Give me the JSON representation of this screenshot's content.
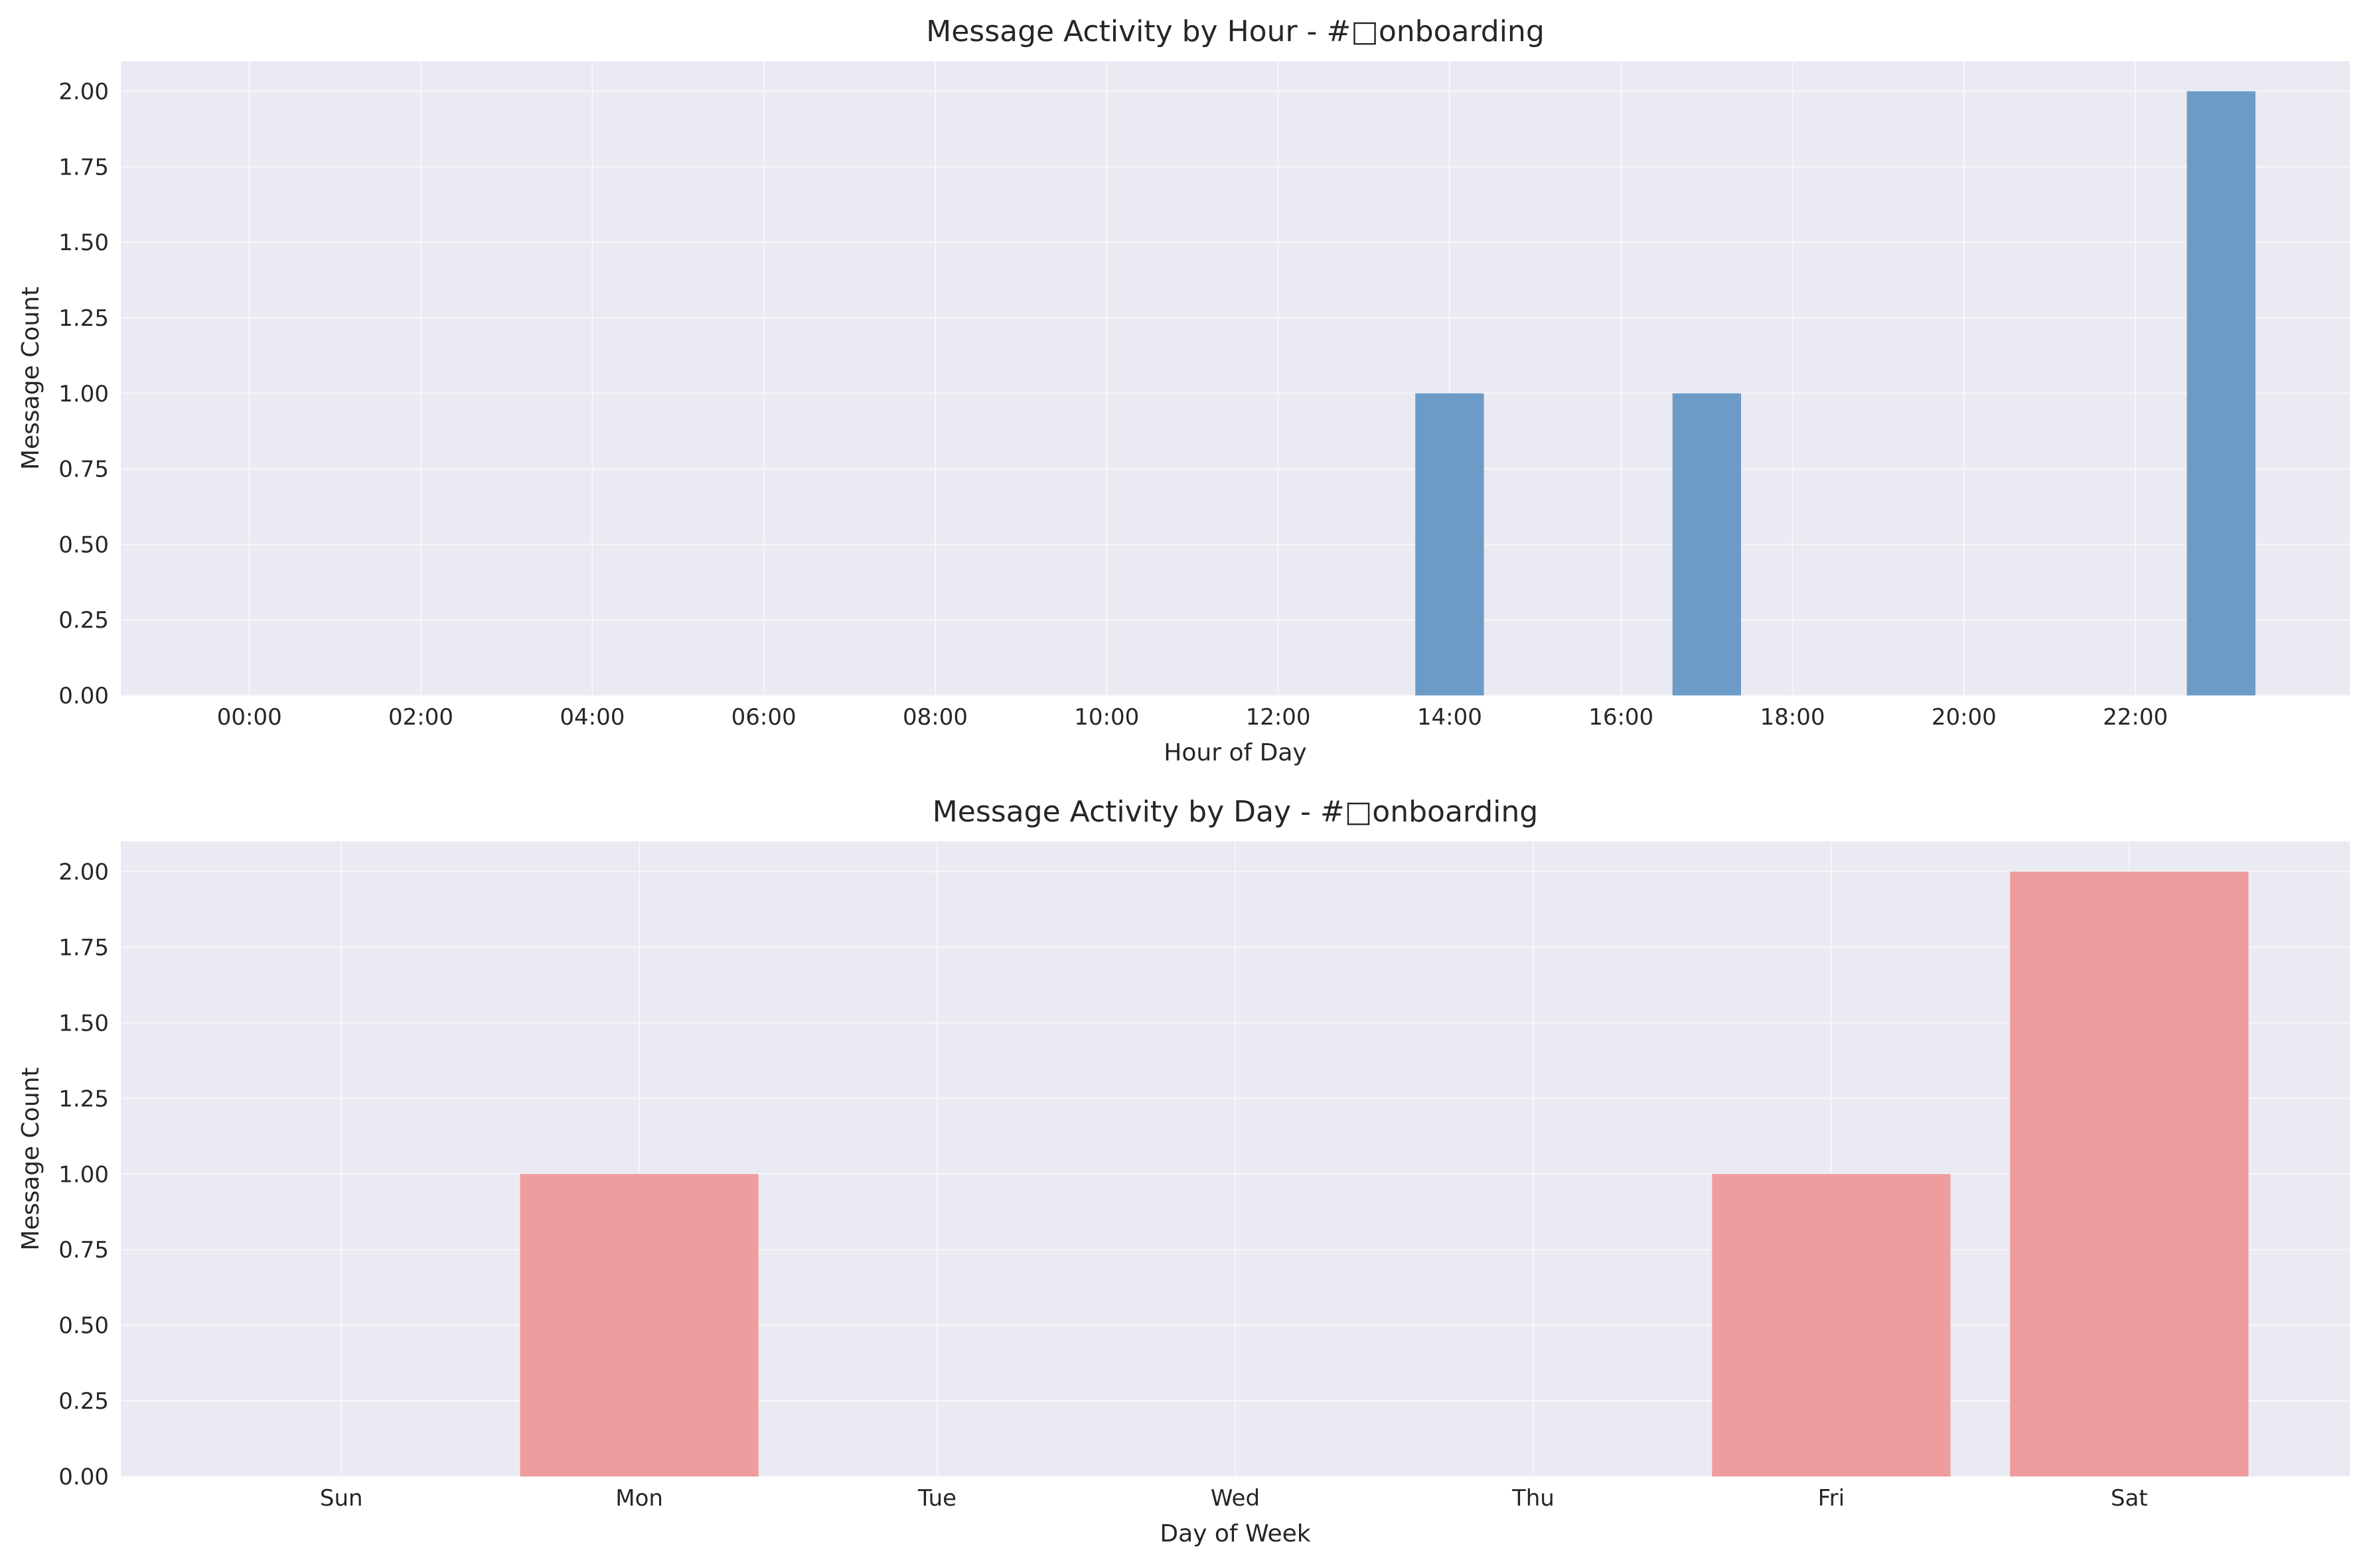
{
  "chart_data": [
    {
      "type": "bar",
      "title": "Message Activity by Hour - #□onboarding",
      "xlabel": "Hour of Day",
      "ylabel": "Message Count",
      "x": [
        0,
        1,
        2,
        3,
        4,
        5,
        6,
        7,
        8,
        9,
        10,
        11,
        12,
        13,
        14,
        15,
        16,
        17,
        18,
        19,
        20,
        21,
        22,
        23
      ],
      "values": [
        0,
        0,
        0,
        0,
        0,
        0,
        0,
        0,
        0,
        0,
        0,
        0,
        0,
        0,
        1,
        0,
        0,
        1,
        0,
        0,
        0,
        0,
        0,
        2
      ],
      "xticks": [
        0,
        2,
        4,
        6,
        8,
        10,
        12,
        14,
        16,
        18,
        20,
        22
      ],
      "xtick_labels": [
        "00:00",
        "02:00",
        "04:00",
        "06:00",
        "08:00",
        "10:00",
        "12:00",
        "14:00",
        "16:00",
        "18:00",
        "20:00",
        "22:00"
      ],
      "yticks": [
        0,
        0.25,
        0.5,
        0.75,
        1,
        1.25,
        1.5,
        1.75,
        2
      ],
      "ytick_labels": [
        "0.00",
        "0.25",
        "0.50",
        "0.75",
        "1.00",
        "1.25",
        "1.50",
        "1.75",
        "2.00"
      ],
      "xlim": [
        -1.5,
        24.5
      ],
      "ylim": [
        0,
        2.1
      ],
      "color": "#6d9bc7",
      "grid": true
    },
    {
      "type": "bar",
      "title": "Message Activity by Day - #□onboarding",
      "xlabel": "Day of Week",
      "ylabel": "Message Count",
      "categories": [
        "Sun",
        "Mon",
        "Tue",
        "Wed",
        "Thu",
        "Fri",
        "Sat"
      ],
      "values": [
        0,
        1,
        0,
        0,
        0,
        1,
        2
      ],
      "yticks": [
        0,
        0.25,
        0.5,
        0.75,
        1,
        1.25,
        1.5,
        1.75,
        2
      ],
      "ytick_labels": [
        "0.00",
        "0.25",
        "0.50",
        "0.75",
        "1.00",
        "1.25",
        "1.50",
        "1.75",
        "2.00"
      ],
      "xlim": [
        -0.74,
        6.74
      ],
      "ylim": [
        0,
        2.1
      ],
      "color": "#ee9c9e",
      "grid": true
    }
  ],
  "style": {
    "plot_background": "#eaeaf2",
    "grid_color": "#f7f7fa"
  }
}
